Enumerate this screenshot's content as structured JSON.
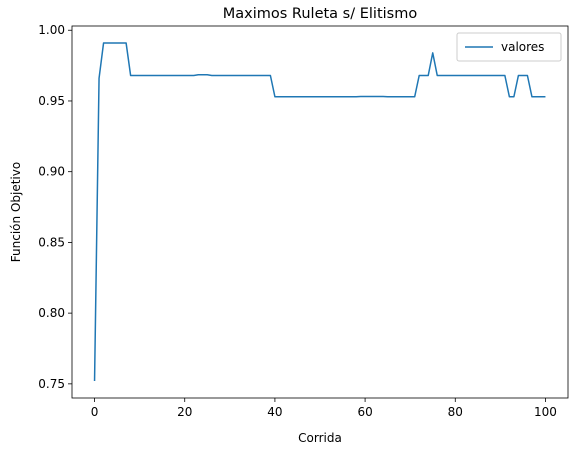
{
  "chart_data": {
    "type": "line",
    "title": "Maximos Ruleta s/ Elitismo",
    "xlabel": "Corrida",
    "ylabel": "Función Objetivo",
    "xlim": [
      -5,
      105
    ],
    "ylim": [
      0.74,
      1.003
    ],
    "xticks": [
      0,
      20,
      40,
      60,
      80,
      100
    ],
    "yticks": [
      0.75,
      0.8,
      0.85,
      0.9,
      0.95,
      1.0
    ],
    "ytick_labels": [
      "0.75",
      "0.80",
      "0.85",
      "0.90",
      "0.95",
      "1.00"
    ],
    "grid": false,
    "legend_position": "top-right",
    "series": [
      {
        "name": "valores",
        "color": "#1f77b4",
        "x": [
          0,
          1,
          2,
          3,
          4,
          5,
          6,
          7,
          8,
          9,
          10,
          11,
          12,
          13,
          14,
          15,
          16,
          17,
          18,
          19,
          20,
          21,
          22,
          23,
          24,
          25,
          26,
          27,
          28,
          29,
          30,
          31,
          32,
          33,
          34,
          35,
          36,
          37,
          38,
          39,
          40,
          41,
          42,
          43,
          44,
          45,
          46,
          47,
          48,
          49,
          50,
          51,
          52,
          53,
          54,
          55,
          56,
          57,
          58,
          59,
          60,
          61,
          62,
          63,
          64,
          65,
          66,
          67,
          68,
          69,
          70,
          71,
          72,
          73,
          74,
          75,
          76,
          77,
          78,
          79,
          80,
          81,
          82,
          83,
          84,
          85,
          86,
          87,
          88,
          89,
          90,
          91,
          92,
          93,
          94,
          95,
          96,
          97,
          98,
          99,
          100
        ],
        "values": [
          0.752,
          0.966,
          0.991,
          0.991,
          0.991,
          0.991,
          0.991,
          0.991,
          0.968,
          0.968,
          0.968,
          0.968,
          0.968,
          0.968,
          0.968,
          0.968,
          0.968,
          0.968,
          0.968,
          0.968,
          0.968,
          0.968,
          0.968,
          0.9685,
          0.9685,
          0.9685,
          0.968,
          0.968,
          0.968,
          0.968,
          0.968,
          0.968,
          0.968,
          0.968,
          0.968,
          0.968,
          0.968,
          0.968,
          0.968,
          0.968,
          0.953,
          0.953,
          0.953,
          0.953,
          0.953,
          0.953,
          0.953,
          0.953,
          0.953,
          0.953,
          0.953,
          0.953,
          0.953,
          0.953,
          0.953,
          0.953,
          0.953,
          0.953,
          0.953,
          0.9532,
          0.9532,
          0.9532,
          0.9532,
          0.9532,
          0.9532,
          0.953,
          0.953,
          0.953,
          0.953,
          0.953,
          0.953,
          0.953,
          0.968,
          0.968,
          0.968,
          0.984,
          0.968,
          0.968,
          0.968,
          0.968,
          0.968,
          0.968,
          0.968,
          0.968,
          0.968,
          0.968,
          0.968,
          0.968,
          0.968,
          0.968,
          0.968,
          0.968,
          0.953,
          0.953,
          0.968,
          0.968,
          0.968,
          0.953,
          0.953,
          0.953,
          0.953
        ]
      }
    ]
  }
}
